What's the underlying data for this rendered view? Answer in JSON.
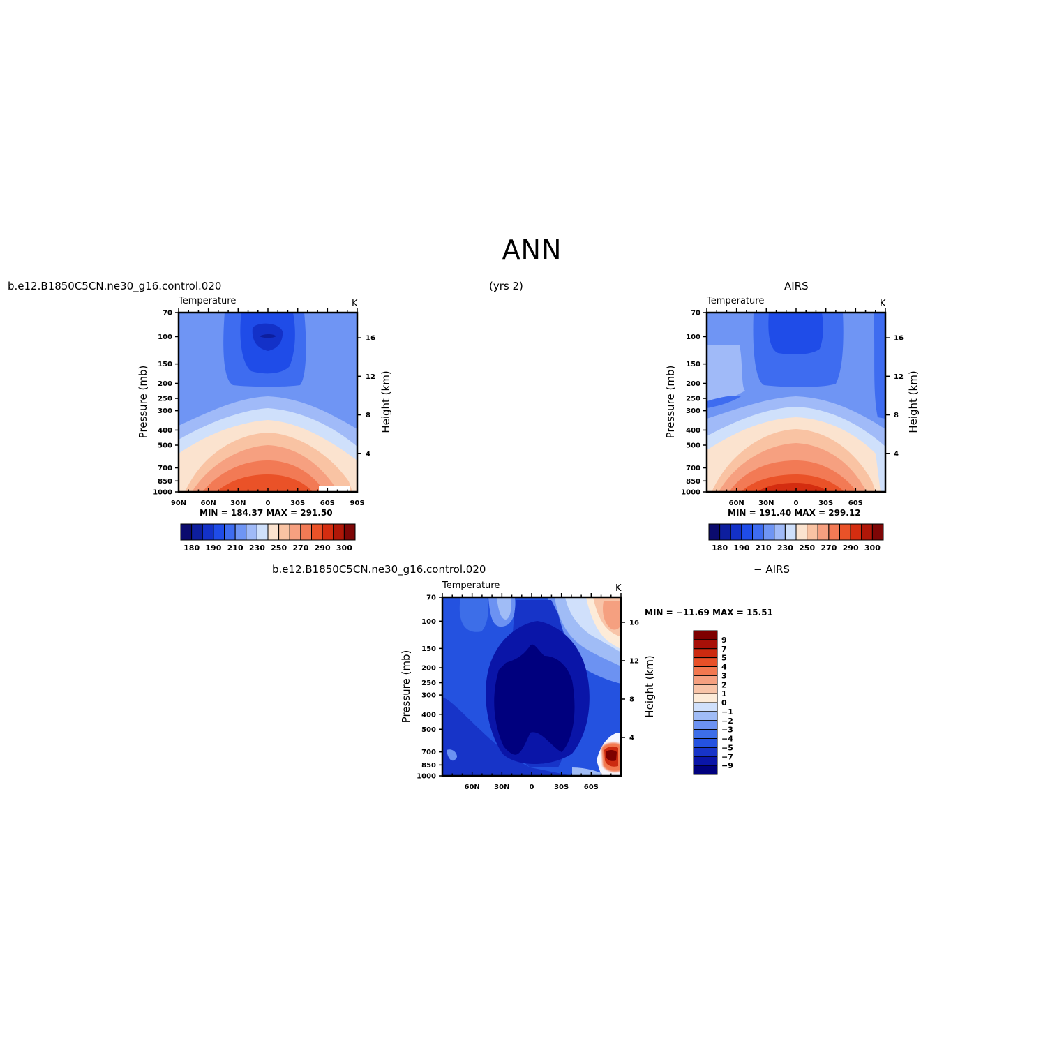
{
  "page": {
    "title": "ANN",
    "case_left": "b.e12.B1850C5CN.ne30_g16.control.020",
    "years": "(yrs 2)",
    "obs_right": "AIRS",
    "case_diff": "b.e12.B1850C5CN.ne30_g16.control.020",
    "diff_suffix": "− AIRS"
  },
  "colors": {
    "abs_scale": [
      "#0b0b6e",
      "#0d1e9e",
      "#1331c8",
      "#1f4ce8",
      "#3e6cf0",
      "#6f95f4",
      "#a0baf8",
      "#cfe0fb",
      "#fbe3cf",
      "#f9c3a3",
      "#f6a080",
      "#f27a55",
      "#ea5228",
      "#d42d10",
      "#b01708",
      "#7e0606"
    ],
    "diff_scale": [
      "#00007e",
      "#0a15a8",
      "#1734c8",
      "#2452e0",
      "#3d6ee8",
      "#6c92f2",
      "#a0bcf6",
      "#d0e0fb",
      "#fdebd8",
      "#f8c4a8",
      "#f5a080",
      "#f27850",
      "#e85028",
      "#cc2a10",
      "#a81008",
      "#7e0000"
    ]
  },
  "chart_data": [
    {
      "type": "heatmap",
      "name_id": "model",
      "title": "Temperature",
      "units": "K",
      "ylabel": "Pressure (mb)",
      "y2label": "Height (km)",
      "x_ticks": [
        "90N",
        "60N",
        "30N",
        "0",
        "30S",
        "60S",
        "90S"
      ],
      "y_ticks": [
        70,
        100,
        150,
        200,
        250,
        300,
        400,
        500,
        700,
        850,
        1000
      ],
      "y2_ticks": [
        16,
        12,
        8,
        4
      ],
      "minmax": "MIN =  184.37   MAX =  291.50",
      "colorbar_labels": [
        "180",
        "190",
        "210",
        "230",
        "250",
        "270",
        "290",
        "300"
      ]
    },
    {
      "type": "heatmap",
      "name_id": "obs",
      "title": "Temperature",
      "units": "K",
      "ylabel": "Pressure (mb)",
      "y2label": "Height (km)",
      "x_ticks": [
        "60N",
        "30N",
        "0",
        "30S",
        "60S"
      ],
      "y_ticks": [
        70,
        100,
        150,
        200,
        250,
        300,
        400,
        500,
        700,
        850,
        1000
      ],
      "y2_ticks": [
        16,
        12,
        8,
        4
      ],
      "minmax": "MIN =  191.40   MAX =  299.12",
      "colorbar_labels": [
        "180",
        "190",
        "210",
        "230",
        "250",
        "270",
        "290",
        "300"
      ]
    },
    {
      "type": "heatmap",
      "name_id": "diff",
      "title": "Temperature",
      "units": "K",
      "ylabel": "Pressure (mb)",
      "y2label": "Height (km)",
      "x_ticks": [
        "60N",
        "30N",
        "0",
        "30S",
        "60S"
      ],
      "y_ticks": [
        70,
        100,
        150,
        200,
        250,
        300,
        400,
        500,
        700,
        850,
        1000
      ],
      "y2_ticks": [
        16,
        12,
        8,
        4
      ],
      "minmax": "MIN = −11.69   MAX =   15.51",
      "colorbar_labels": [
        "9",
        "7",
        "5",
        "4",
        "3",
        "2",
        "1",
        "0",
        "−1",
        "−2",
        "−3",
        "−4",
        "−5",
        "−7",
        "−9"
      ]
    }
  ]
}
